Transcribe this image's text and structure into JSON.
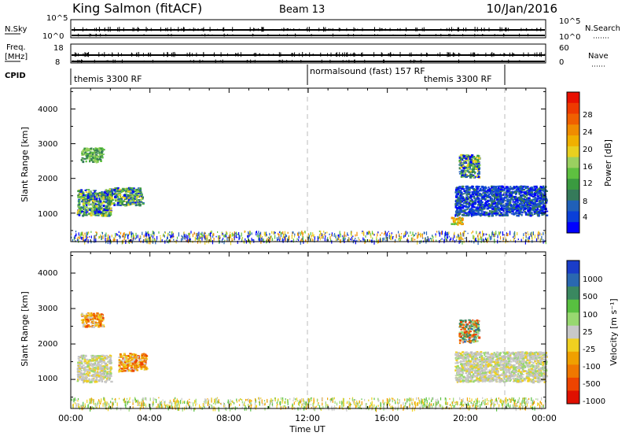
{
  "header": {
    "station": "King Salmon (fitACF)",
    "beam": "Beam 13",
    "date": "10/Jan/2016"
  },
  "strips": {
    "nsky": {
      "label": "N.Sky",
      "ticks_left": [
        "10^5",
        "10^0"
      ],
      "ticks_right": [
        "10^5",
        "10^0"
      ],
      "right_label": "N.Search"
    },
    "freq": {
      "label_line1": "Freq.",
      "label_line2": "[MHz]",
      "ticks_left": [
        "18",
        "8"
      ],
      "ticks_right": [
        "60",
        "0"
      ],
      "right_label": "Nave"
    },
    "cpid": {
      "label": "CPID",
      "segments": [
        {
          "text": "themis 3300 RF",
          "start_hour": 0
        },
        {
          "text": "normalsound (fast) 157 RF",
          "start_hour": 12
        },
        {
          "text": "themis 3300 RF",
          "start_hour": 22
        }
      ]
    }
  },
  "axes": {
    "x_ticks": [
      "00:00",
      "04:00",
      "08:00",
      "12:00",
      "16:00",
      "20:00",
      "00:00"
    ],
    "x_label": "Time UT",
    "y_ticks": [
      "1000",
      "2000",
      "3000",
      "4000"
    ],
    "y_label": "Slant Range [km]"
  },
  "chart_data": [
    {
      "type": "heatmap",
      "title": "",
      "quantity": "Power",
      "xlabel": "Time UT",
      "ylabel": "Slant Range [km]",
      "xlim_hours": [
        0,
        24
      ],
      "ylim_km": [
        180,
        4600
      ],
      "colorbar": {
        "label": "Power [dB]",
        "ticks": [
          "4",
          "8",
          "12",
          "16",
          "20",
          "24",
          "28"
        ],
        "colors": [
          "#0000ff",
          "#0a3fd8",
          "#2060b8",
          "#357a5a",
          "#3a9a40",
          "#5ec040",
          "#9ad060",
          "#e8d020",
          "#f0b000",
          "#f08c00",
          "#f06000",
          "#ee3a00",
          "#e81000"
        ]
      },
      "regions": [
        {
          "hours": [
            0.3,
            2.0
          ],
          "km": [
            950,
            1700
          ],
          "level": "mixed"
        },
        {
          "hours": [
            1.8,
            3.6
          ],
          "km": [
            1250,
            1750
          ],
          "level": "mixed"
        },
        {
          "hours": [
            0.5,
            1.6
          ],
          "km": [
            2500,
            2900
          ],
          "level": "mid"
        },
        {
          "hours": [
            19.6,
            20.6
          ],
          "km": [
            2050,
            2700
          ],
          "level": "mixed"
        },
        {
          "hours": [
            19.4,
            24.0
          ],
          "km": [
            950,
            1800
          ],
          "level": "low"
        },
        {
          "hours": [
            19.2,
            19.8
          ],
          "km": [
            700,
            900
          ],
          "level": "high"
        },
        {
          "hours": [
            0.0,
            24.0
          ],
          "km": [
            200,
            500
          ],
          "level": "sparse"
        }
      ]
    },
    {
      "type": "heatmap",
      "title": "",
      "quantity": "Velocity",
      "xlabel": "Time UT",
      "ylabel": "Slant Range [km]",
      "xlim_hours": [
        0,
        24
      ],
      "ylim_km": [
        180,
        4600
      ],
      "colorbar": {
        "label": "Velocity [m s⁻¹]",
        "ticks": [
          "1000",
          "500",
          "100",
          "25",
          "-25",
          "-100",
          "-500",
          "-1000"
        ],
        "colors": [
          "#1a3dc8",
          "#2a68b0",
          "#3a8860",
          "#58c040",
          "#98d870",
          "#c8c8c8",
          "#f0d020",
          "#f0a000",
          "#f07800",
          "#ee4400",
          "#e01000"
        ]
      },
      "regions": [
        {
          "hours": [
            0.3,
            2.0
          ],
          "km": [
            950,
            1700
          ],
          "level": "near-zero"
        },
        {
          "hours": [
            2.4,
            3.8
          ],
          "km": [
            1250,
            1750
          ],
          "level": "negative"
        },
        {
          "hours": [
            0.5,
            1.6
          ],
          "km": [
            2500,
            2900
          ],
          "level": "negative"
        },
        {
          "hours": [
            19.6,
            20.6
          ],
          "km": [
            2050,
            2700
          ],
          "level": "mixed"
        },
        {
          "hours": [
            19.4,
            24.0
          ],
          "km": [
            950,
            1800
          ],
          "level": "near-zero"
        },
        {
          "hours": [
            0.0,
            24.0
          ],
          "km": [
            200,
            500
          ],
          "level": "sparse"
        }
      ]
    }
  ]
}
